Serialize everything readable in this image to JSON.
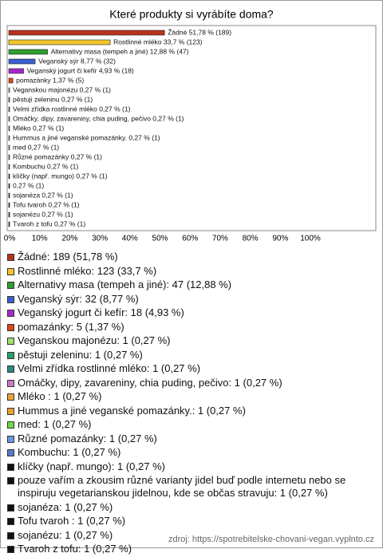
{
  "chart_data": {
    "type": "bar",
    "orientation": "horizontal",
    "title": "Které produkty si vyrábíte doma?",
    "values": [
      51.78,
      33.7,
      12.88,
      8.77,
      4.93,
      1.37,
      0.27,
      0.27,
      0.27,
      0.27,
      0.27,
      0.27,
      0.27,
      0.27,
      0.27,
      0.27,
      0.27,
      0.27,
      0.27,
      0.27,
      0.27
    ],
    "value_labels": [
      "Žádné 51,78 % (189)",
      "Rostlinné mléko 33,7 % (123)",
      "Alternativy masa (tempeh a jiné) 12,88 % (47)",
      "Veganský sýr 8,77 % (32)",
      "Veganský jogurt či kefír 4,93 % (18)",
      "pomazánky 1,37 % (5)",
      "Veganskou majonézu 0,27 % (1)",
      "pěstuji zeleninu 0,27 % (1)",
      "Velmi zřídka rostlinné mléko 0,27 % (1)",
      "Omáčky, dipy, zavareniny, chia puding, pečivo 0,27 % (1)",
      "Mléko  0,27 % (1)",
      "Hummus a jiné veganské pomazánky. 0,27 % (1)",
      "med 0,27 % (1)",
      "Různé pomazánky 0,27 % (1)",
      "Kombuchu 0,27 % (1)",
      "klíčky (např. mungo) 0,27 % (1)",
      "0,27 % (1)",
      "sojanéza 0,27 % (1)",
      "Tofu tvaroh  0,27 % (1)",
      "sojanézu 0,27 % (1)",
      "Tvaroh z tofu 0,27 % (1)"
    ],
    "colors": [
      "#b8321c",
      "#f2c52a",
      "#2e9e2e",
      "#3a5fd0",
      "#a628c8",
      "#e0461a",
      "#9be06a",
      "#2aa06a",
      "#2a8a8a",
      "#c87ac8",
      "#e8a23a",
      "#f0a030",
      "#6ed84a",
      "#6a98e0",
      "#5a78c8",
      "#111111",
      "#111111",
      "#111111",
      "#111111",
      "#111111",
      "#111111"
    ],
    "legend_labels": [
      "Žádné: 189 (51,78 %)",
      "Rostlinné mléko: 123 (33,7 %)",
      "Alternativy masa (tempeh a jiné): 47 (12,88 %)",
      "Veganský sýr: 32 (8,77 %)",
      "Veganský jogurt či kefír: 18 (4,93 %)",
      "pomazánky: 5 (1,37 %)",
      "Veganskou majonézu: 1 (0,27 %)",
      "pěstuji zeleninu: 1 (0,27 %)",
      "Velmi zřídka rostlinné mléko: 1 (0,27 %)",
      "Omáčky, dipy, zavareniny, chia puding, pečivo: 1 (0,27 %)",
      "Mléko : 1 (0,27 %)",
      "Hummus a jiné veganské pomazánky.: 1 (0,27 %)",
      "med: 1 (0,27 %)",
      "Různé pomazánky: 1 (0,27 %)",
      "Kombuchu: 1 (0,27 %)",
      "klíčky (např. mungo): 1 (0,27 %)",
      "pouze vařím a zkousim různé varianty  jidel buď podle internetu nebo se inspiruju vegetarianskou jidelnou, kde se občas stravuju: 1 (0,27 %)",
      "sojanéza: 1 (0,27 %)",
      "Tofu tvaroh : 1 (0,27 %)",
      "sojanézu: 1 (0,27 %)",
      "Tvaroh z tofu: 1 (0,27 %)"
    ],
    "xlim": [
      0,
      122
    ],
    "xticks": [
      {
        "value": 0,
        "label": "0%"
      },
      {
        "value": 10,
        "label": "10%"
      },
      {
        "value": 20,
        "label": "20%"
      },
      {
        "value": 30,
        "label": "30%"
      },
      {
        "value": 40,
        "label": "40%"
      },
      {
        "value": 50,
        "label": "50%"
      },
      {
        "value": 60,
        "label": "60%"
      },
      {
        "value": 70,
        "label": "70%"
      },
      {
        "value": 80,
        "label": "80%"
      },
      {
        "value": 90,
        "label": "90%"
      },
      {
        "value": 100,
        "label": "100%"
      }
    ],
    "source": "zdroj: https://spotrebitelske-chovani-vegan.vyplnto.cz"
  }
}
